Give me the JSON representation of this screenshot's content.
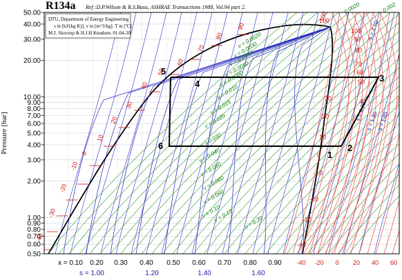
{
  "chart_data": {
    "type": "line",
    "title": "R134a",
    "reference": "Ref :D.P.Wilson & R.S.Basu, ASHRAE Transactions 1988, Vol.94 part 2.",
    "notes": [
      "DTU, Department of Energy Engineering",
      "s in [kJ/(kg K)].  v in [m^3/kg].  T in [ºC]",
      "M.J. Skovrup & H.J.H Knudsen. 01-04-20"
    ],
    "ylabel": "Pressure [bar]",
    "yscale": "log",
    "ylim": [
      0.5,
      50
    ],
    "y_ticks": [
      {
        "v": 0.5,
        "label": "0.50"
      },
      {
        "v": 0.6,
        "label": "0.60"
      },
      {
        "v": 0.7,
        "label": "0.70"
      },
      {
        "v": 0.8,
        "label": "0.80"
      },
      {
        "v": 0.9,
        "label": "0.90"
      },
      {
        "v": 1.0,
        "label": "1.00"
      },
      {
        "v": 2.0,
        "label": "2.00"
      },
      {
        "v": 3.0,
        "label": "3.00"
      },
      {
        "v": 4.0,
        "label": "4.00"
      },
      {
        "v": 5.0,
        "label": "5.00"
      },
      {
        "v": 6.0,
        "label": "6.00"
      },
      {
        "v": 7.0,
        "label": "7.00"
      },
      {
        "v": 8.0,
        "label": "8.00"
      },
      {
        "v": 9.0,
        "label": "9.00"
      },
      {
        "v": 10.0,
        "label": "10.00"
      },
      {
        "v": 20.0,
        "label": "20.00"
      },
      {
        "v": 30.0,
        "label": "30.00"
      },
      {
        "v": 40.0,
        "label": "40.00"
      },
      {
        "v": 50.0,
        "label": "50.00"
      }
    ],
    "x_quality_labels": [
      "x = 0.10",
      "0.20",
      "0.30",
      "0.40",
      "0.50",
      "0.60",
      "0.70",
      "0.80",
      "0.90"
    ],
    "x_entropy_labels": [
      "s = 1.00",
      "1.20",
      "1.40",
      "1.60"
    ],
    "x_temp_labels": [
      "-40",
      "-20",
      "0",
      "20",
      "40",
      "60"
    ],
    "isotherm_labels": [
      "-40",
      "-30",
      "-20",
      "-10",
      "0",
      "10",
      "20",
      "30",
      "40",
      "50",
      "60",
      "70",
      "80",
      "90",
      "100"
    ],
    "isochore_labels": [
      "v = 0.0020",
      "v = 0.0030",
      "v = 0.0040",
      "v = 0.0060",
      "v = 0.0080",
      "v = 0.010",
      "v = 0.015",
      "v = 0.020",
      "v = 0.030",
      "v = 0.040",
      "v = 0.050",
      "v = 0.060",
      "v = 0.080",
      "v = 0.10",
      "v = 0.15",
      "v = 0.20"
    ],
    "isentrope_labels": [
      "s = 1.70",
      "s = 1.75",
      "s = 1.80",
      "s = 1.85"
    ],
    "top_labels": [
      "100",
      "0.0020",
      "0.002"
    ],
    "grid": true,
    "cycle_labels": [
      "1",
      "2",
      "3",
      "4",
      "5",
      "6"
    ],
    "cycle": {
      "p_low": 4.0,
      "p_high": 14.0
    }
  }
}
